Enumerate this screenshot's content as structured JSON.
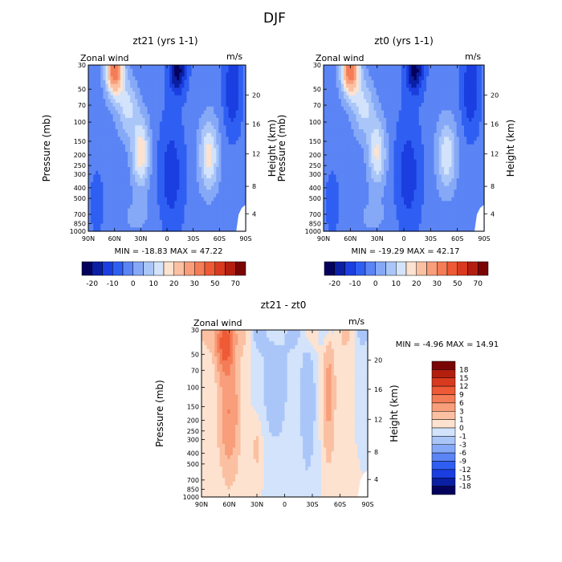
{
  "figure_title": "DJF",
  "shared": {
    "variable_label": "Zonal wind",
    "units": "m/s",
    "ylabel_left": "Pressure (mb)",
    "ylabel_right": "Height (km)",
    "pressure_ticks": [
      "30",
      "50",
      "70",
      "100",
      "150",
      "200",
      "250",
      "300",
      "400",
      "500",
      "700",
      "850",
      "1000"
    ],
    "height_ticks": [
      "4",
      "8",
      "12",
      "16",
      "20"
    ],
    "lat_ticks": [
      "90N",
      "60N",
      "30N",
      "0",
      "30S",
      "60S",
      "90S"
    ]
  },
  "chart_data": [
    {
      "type": "heatmap",
      "title": "zt21 (yrs 1-1)",
      "min_max_text": "MIN = -18.83   MAX = 47.22",
      "min": -18.83,
      "max": 47.22,
      "xlabel": "",
      "ylabel": "Pressure (mb)",
      "colorbar": {
        "orientation": "horizontal",
        "labels": [
          "-20",
          "-10",
          "0",
          "10",
          "20",
          "30",
          "50",
          "70"
        ],
        "colors": [
          "#05025e",
          "#0a1fa3",
          "#1a3ee0",
          "#2f5ff2",
          "#5b84f5",
          "#86a9f7",
          "#aac6f9",
          "#d2e3fb",
          "#fde2d0",
          "#fbc0a2",
          "#f89e7b",
          "#f47c56",
          "#ee5a36",
          "#d83a1f",
          "#b31f0f",
          "#7a0505"
        ]
      }
    },
    {
      "type": "heatmap",
      "title": "zt0 (yrs 1-1)",
      "min_max_text": "MIN = -19.29   MAX = 42.17",
      "min": -19.29,
      "max": 42.17,
      "xlabel": "",
      "ylabel": "Pressure (mb)",
      "colorbar": {
        "orientation": "horizontal",
        "labels": [
          "-20",
          "-10",
          "0",
          "10",
          "20",
          "30",
          "50",
          "70"
        ],
        "colors": [
          "#05025e",
          "#0a1fa3",
          "#1a3ee0",
          "#2f5ff2",
          "#5b84f5",
          "#86a9f7",
          "#aac6f9",
          "#d2e3fb",
          "#fde2d0",
          "#fbc0a2",
          "#f89e7b",
          "#f47c56",
          "#ee5a36",
          "#d83a1f",
          "#b31f0f",
          "#7a0505"
        ]
      }
    },
    {
      "type": "heatmap",
      "title": "zt21 - zt0",
      "min_max_text": "MIN = -4.96   MAX = 14.91",
      "min": -4.96,
      "max": 14.91,
      "xlabel": "",
      "ylabel": "Pressure (mb)",
      "colorbar": {
        "orientation": "vertical",
        "labels": [
          "18",
          "15",
          "12",
          "9",
          "6",
          "3",
          "1",
          "0",
          "-1",
          "-3",
          "-6",
          "-9",
          "-12",
          "-15",
          "-18"
        ],
        "colors": [
          "#7a0505",
          "#b31f0f",
          "#d83a1f",
          "#ee5a36",
          "#f47c56",
          "#f89e7b",
          "#fbc0a2",
          "#fde2d0",
          "#d2e3fb",
          "#aac6f9",
          "#86a9f7",
          "#5b84f5",
          "#2f5ff2",
          "#1a3ee0",
          "#0a1fa3",
          "#05025e"
        ]
      }
    }
  ]
}
